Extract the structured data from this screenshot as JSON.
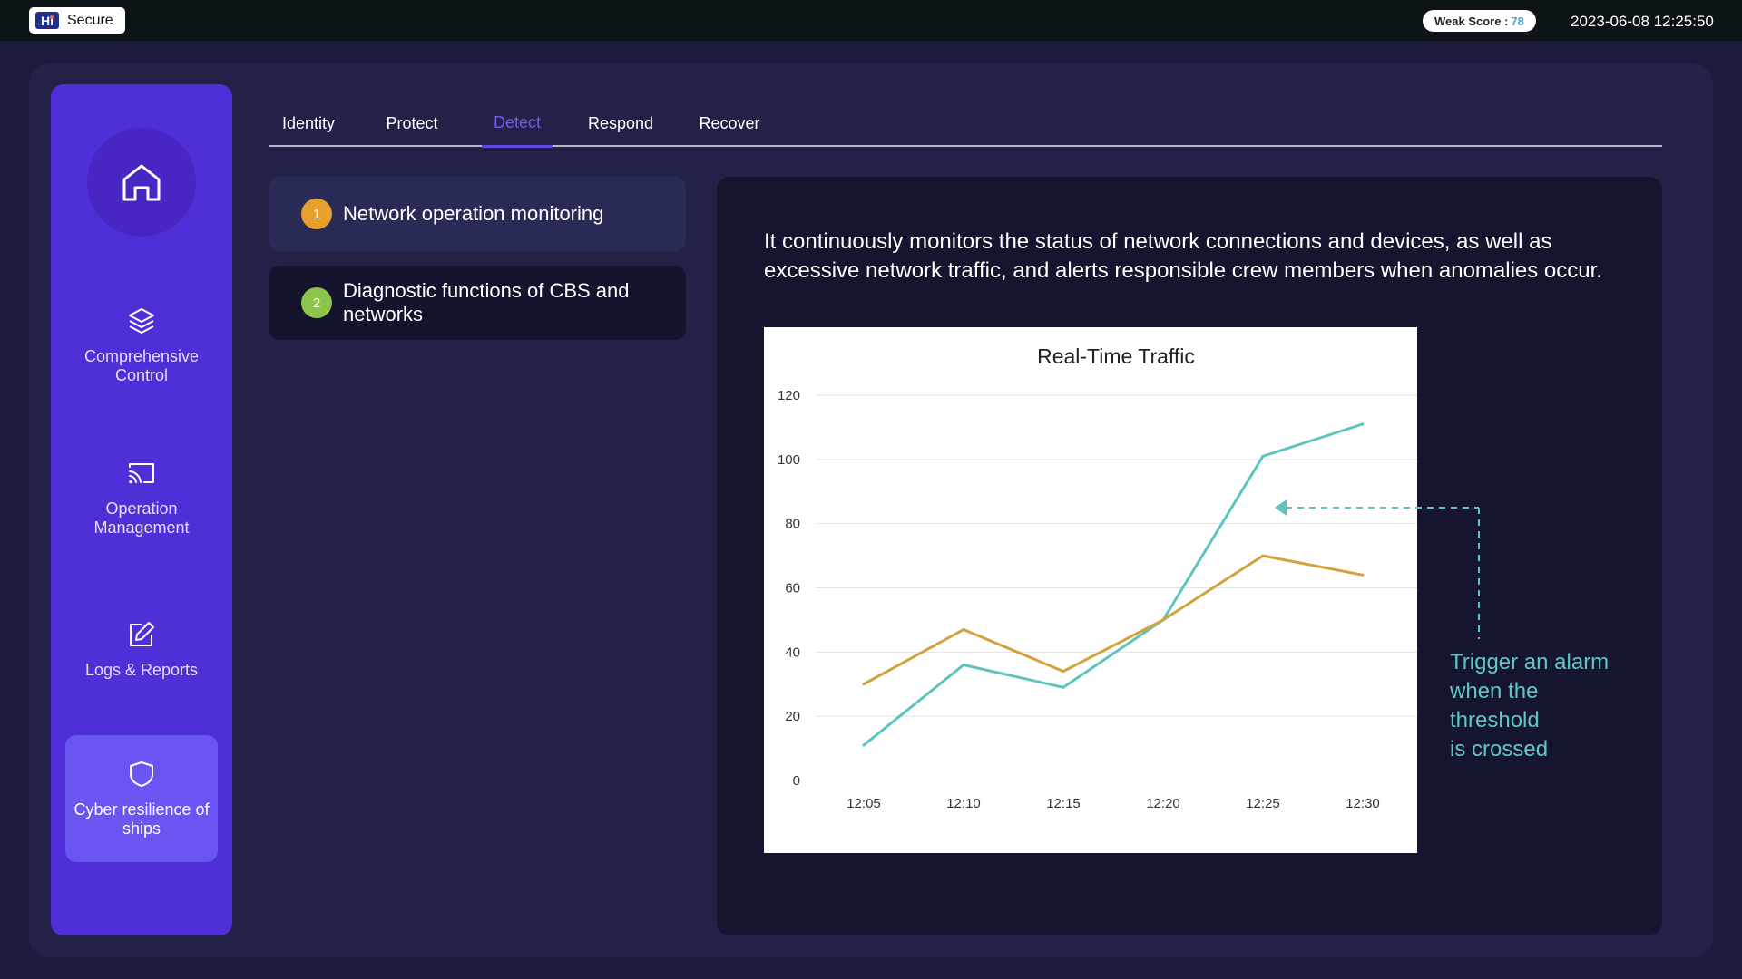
{
  "header": {
    "logo_mark": "Hi",
    "app_name": "Secure",
    "weak_score_label": "Weak Score :",
    "weak_score_value": "78",
    "datetime": "2023-06-08 12:25:50"
  },
  "sidebar": {
    "items": [
      {
        "label": "Comprehensive Control",
        "icon": "layers-icon"
      },
      {
        "label": "Operation Management",
        "icon": "cast-icon"
      },
      {
        "label": "Logs & Reports",
        "icon": "edit-icon"
      },
      {
        "label": "Cyber resilience of ships",
        "icon": "shield-icon"
      }
    ],
    "active_index": 3
  },
  "tabs": [
    {
      "label": "Identity"
    },
    {
      "label": "Protect"
    },
    {
      "label": "Detect"
    },
    {
      "label": "Respond"
    },
    {
      "label": "Recover"
    }
  ],
  "active_tab": "Detect",
  "features": [
    {
      "num": "1",
      "label": "Network operation monitoring",
      "color": "#e6a12d"
    },
    {
      "num": "2",
      "label": "Diagnostic functions of CBS and networks",
      "color": "#8dc44a"
    }
  ],
  "detail": {
    "description": "It continuously monitors the status of network connections and devices, as well as excessive network traffic, and alerts responsible crew members when anomalies occur.",
    "annotation_lines": [
      "Trigger an alarm",
      "when the",
      "threshold",
      "is crossed"
    ]
  },
  "colors": {
    "teal": "#5ec4bd",
    "gold": "#d4a23d",
    "accent": "#5b49e6"
  },
  "chart_data": {
    "type": "line",
    "title": "Real-Time Traffic",
    "categories": [
      "12:05",
      "12:10",
      "12:15",
      "12:20",
      "12:25",
      "12:30"
    ],
    "series": [
      {
        "name": "teal",
        "color": "#5ec4bd",
        "values": [
          11,
          36,
          29,
          50,
          101,
          111
        ]
      },
      {
        "name": "gold",
        "color": "#d4a23d",
        "values": [
          30,
          47,
          34,
          50,
          70,
          64
        ]
      }
    ],
    "ylim": [
      0,
      120
    ],
    "yticks": [
      0,
      20,
      40,
      60,
      80,
      100,
      120
    ],
    "threshold": 85,
    "xlabel": "",
    "ylabel": "",
    "grid": true
  }
}
